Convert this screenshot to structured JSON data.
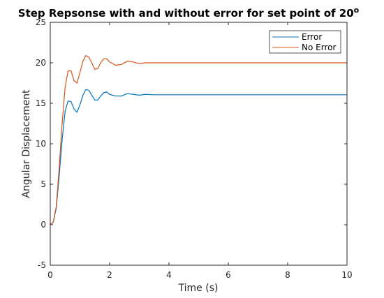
{
  "chart_data": {
    "type": "line",
    "title": "Step Repsonse with and without error for set point of 20",
    "title_superscript": "o",
    "xlabel": "Time (s)",
    "ylabel": "Angular Displacement",
    "xlim": [
      0,
      10
    ],
    "ylim": [
      -5,
      25
    ],
    "x_ticks": [
      "0",
      "2",
      "4",
      "6",
      "8",
      "10"
    ],
    "y_ticks": [
      "-5",
      "0",
      "5",
      "10",
      "15",
      "20",
      "25"
    ],
    "grid": false,
    "legend_position": "top-right",
    "series": [
      {
        "name": "Error",
        "color": "#0072BD",
        "x": [
          0,
          0.1,
          0.2,
          0.3,
          0.4,
          0.5,
          0.6,
          0.7,
          0.8,
          0.9,
          1.0,
          1.1,
          1.2,
          1.3,
          1.4,
          1.5,
          1.6,
          1.7,
          1.8,
          1.9,
          2.0,
          2.2,
          2.4,
          2.6,
          2.8,
          3.0,
          3.2,
          3.5,
          4.0,
          5.0,
          6.0,
          8.0,
          10.0
        ],
        "y": [
          0,
          0.3,
          2.0,
          6.0,
          10.5,
          14.0,
          15.3,
          15.2,
          14.3,
          13.9,
          14.8,
          16.0,
          16.7,
          16.6,
          16.0,
          15.4,
          15.4,
          15.9,
          16.3,
          16.4,
          16.1,
          15.9,
          15.9,
          16.2,
          16.1,
          16.0,
          16.1,
          16.05,
          16.05,
          16.05,
          16.05,
          16.05,
          16.05
        ]
      },
      {
        "name": "No Error",
        "color": "#D95319",
        "x": [
          0,
          0.1,
          0.2,
          0.3,
          0.4,
          0.5,
          0.6,
          0.7,
          0.8,
          0.9,
          1.0,
          1.1,
          1.2,
          1.3,
          1.4,
          1.5,
          1.6,
          1.7,
          1.8,
          1.9,
          2.0,
          2.2,
          2.4,
          2.6,
          2.8,
          3.0,
          3.2,
          3.5,
          4.0,
          5.0,
          6.0,
          8.0,
          10.0
        ],
        "y": [
          0,
          0.3,
          2.2,
          7.0,
          12.5,
          17.0,
          19.0,
          19.0,
          17.8,
          17.5,
          18.8,
          20.2,
          20.9,
          20.7,
          20.0,
          19.2,
          19.3,
          20.0,
          20.5,
          20.5,
          20.1,
          19.7,
          19.8,
          20.2,
          20.1,
          19.9,
          20.0,
          20.0,
          20.0,
          20.0,
          20.0,
          20.0,
          20.0
        ]
      }
    ]
  }
}
